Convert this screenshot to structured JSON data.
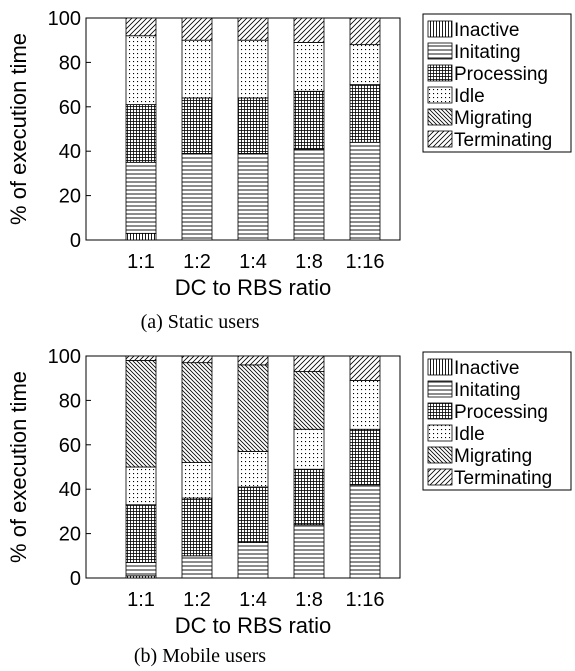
{
  "chart_data": [
    {
      "type": "bar",
      "stacked": true,
      "caption": "(a) Static users",
      "xlabel": "DC to RBS ratio",
      "ylabel": "% of execution time",
      "ylim": [
        0,
        100
      ],
      "yticks": [
        "0",
        "20",
        "40",
        "60",
        "80",
        "100"
      ],
      "categories": [
        "1:1",
        "1:2",
        "1:4",
        "1:8",
        "1:16"
      ],
      "legend_position": "top-right (outside plot)",
      "series": [
        {
          "name": "Inactive",
          "pattern": "vertical-lines",
          "values": [
            3,
            0,
            0,
            0,
            0
          ]
        },
        {
          "name": "Initating",
          "pattern": "horizontal-lines",
          "values": [
            32,
            39,
            39,
            41,
            44
          ]
        },
        {
          "name": "Processing",
          "pattern": "grid",
          "values": [
            26,
            25,
            25,
            26,
            26
          ]
        },
        {
          "name": "Idle",
          "pattern": "dots",
          "values": [
            31,
            26,
            26,
            22,
            18
          ]
        },
        {
          "name": "Migrating",
          "pattern": "back-diagonal",
          "values": [
            0,
            0,
            0,
            0,
            0
          ]
        },
        {
          "name": "Terminating",
          "pattern": "forward-diagonal",
          "values": [
            8,
            10,
            10,
            11,
            12
          ]
        }
      ]
    },
    {
      "type": "bar",
      "stacked": true,
      "caption": "(b) Mobile users",
      "xlabel": "DC to RBS ratio",
      "ylabel": "% of execution time",
      "ylim": [
        0,
        100
      ],
      "yticks": [
        "0",
        "20",
        "40",
        "60",
        "80",
        "100"
      ],
      "categories": [
        "1:1",
        "1:2",
        "1:4",
        "1:8",
        "1:16"
      ],
      "legend_position": "top-right (outside plot)",
      "series": [
        {
          "name": "Inactive",
          "pattern": "vertical-lines",
          "values": [
            1,
            0,
            0,
            0,
            0
          ]
        },
        {
          "name": "Initating",
          "pattern": "horizontal-lines",
          "values": [
            6,
            10,
            16,
            24,
            42
          ]
        },
        {
          "name": "Processing",
          "pattern": "grid",
          "values": [
            26,
            26,
            25,
            25,
            25
          ]
        },
        {
          "name": "Idle",
          "pattern": "dots",
          "values": [
            17,
            16,
            16,
            18,
            22
          ]
        },
        {
          "name": "Migrating",
          "pattern": "back-diagonal",
          "values": [
            48,
            45,
            39,
            26,
            0
          ]
        },
        {
          "name": "Terminating",
          "pattern": "forward-diagonal",
          "values": [
            2,
            3,
            4,
            7,
            11
          ]
        }
      ]
    }
  ]
}
